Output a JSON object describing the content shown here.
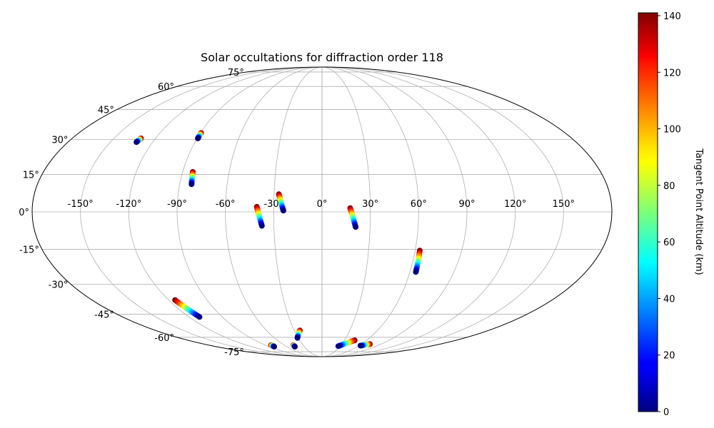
{
  "chart_data": {
    "type": "scatter",
    "projection": "aitoff-like ellipse (longitude/latitude)",
    "title": "Solar occultations for diffraction order 118",
    "grid": true,
    "lon_ticks": [
      "-150°",
      "-120°",
      "-90°",
      "-60°",
      "-30°",
      "0°",
      "30°",
      "60°",
      "90°",
      "120°",
      "150°"
    ],
    "lon_values": [
      -150,
      -120,
      -90,
      -60,
      -30,
      0,
      30,
      60,
      90,
      120,
      150
    ],
    "lat_ticks": [
      "75°",
      "60°",
      "45°",
      "30°",
      "15°",
      "0°",
      "-15°",
      "-30°",
      "-45°",
      "-60°",
      "-75°"
    ],
    "lat_values": [
      75,
      60,
      45,
      30,
      15,
      0,
      -15,
      -30,
      -45,
      -60,
      -75
    ],
    "colorbar": {
      "label": "Tangent Point Altitude (km)",
      "colormap": "jet",
      "range": [
        0,
        141
      ],
      "ticks": [
        "0",
        "20",
        "40",
        "60",
        "80",
        "100",
        "120",
        "140"
      ],
      "tick_values": [
        0,
        20,
        40,
        60,
        80,
        100,
        120,
        140
      ]
    },
    "occultations": [
      {
        "lon_start": -130.5,
        "lat_start": 30.5,
        "lon_end": -131.5,
        "lat_end": 28.8
      },
      {
        "lon_start": -89.5,
        "lat_start": 33.0,
        "lon_end": -89.5,
        "lat_end": 30.5
      },
      {
        "lon_start": -83.5,
        "lat_start": 16.0,
        "lon_end": -82.5,
        "lat_end": 11.0
      },
      {
        "lon_start": -40.5,
        "lat_start": 2.0,
        "lon_end": -37.5,
        "lat_end": -5.5
      },
      {
        "lon_start": -27.0,
        "lat_start": 7.0,
        "lon_end": -24.0,
        "lat_end": 0.5
      },
      {
        "lon_start": 17.5,
        "lat_start": 1.5,
        "lon_end": 21.0,
        "lat_end": -6.0
      },
      {
        "lon_start": 63.0,
        "lat_start": -15.5,
        "lon_end": 64.0,
        "lat_end": -24.5
      },
      {
        "lon_start": -115.0,
        "lat_start": -37.5,
        "lon_end": -110.5,
        "lat_end": -46.5
      },
      {
        "lon_start": -81.0,
        "lat_start": -67.0,
        "lon_end": -81.0,
        "lat_end": -68.5
      },
      {
        "lon_start": -45.5,
        "lat_start": -67.0,
        "lon_end": -46.0,
        "lat_end": -68.5
      },
      {
        "lon_start": -24.0,
        "lat_start": -55.0,
        "lon_end": -31.0,
        "lat_end": -60.5
      },
      {
        "lon_start": 44.0,
        "lat_start": -62.5,
        "lon_end": 27.0,
        "lat_end": -68.0
      },
      {
        "lon_start": 73.0,
        "lat_start": -66.0,
        "lon_end": 62.5,
        "lat_end": -67.5
      }
    ]
  }
}
